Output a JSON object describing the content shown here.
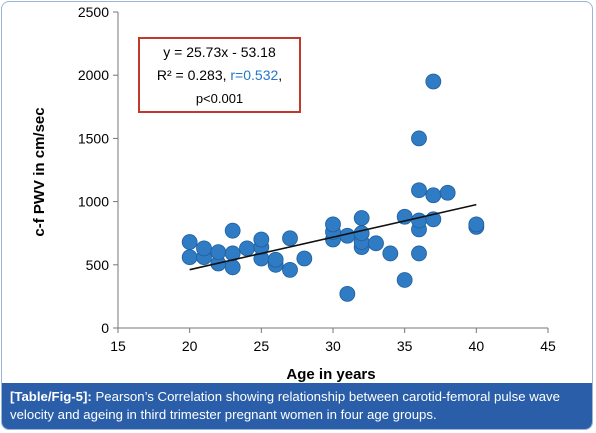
{
  "chart_data": {
    "type": "scatter",
    "xlabel": "Age in years",
    "ylabel": "c-f PWV in cm/sec",
    "xlim": [
      15,
      45
    ],
    "ylim": [
      0,
      2500
    ],
    "xticks": [
      15,
      20,
      25,
      30,
      35,
      40,
      45
    ],
    "yticks": [
      0,
      500,
      1000,
      1500,
      2000,
      2500
    ],
    "point_color": "#2f7bc4",
    "trendline": {
      "slope": 25.73,
      "intercept": -53.18,
      "x_range": [
        20,
        40
      ]
    },
    "annotation": {
      "line1": "y = 25.73x - 53.18",
      "line2_prefix": "R² = 0.283, ",
      "line2_r": "r=0.532",
      "line2_suffix": ",",
      "line3": "p<0.001"
    },
    "points": [
      {
        "x": 20,
        "y": 560
      },
      {
        "x": 20,
        "y": 680
      },
      {
        "x": 21,
        "y": 560
      },
      {
        "x": 21,
        "y": 630
      },
      {
        "x": 22,
        "y": 510
      },
      {
        "x": 22,
        "y": 600
      },
      {
        "x": 23,
        "y": 480
      },
      {
        "x": 23,
        "y": 590
      },
      {
        "x": 23,
        "y": 770
      },
      {
        "x": 24,
        "y": 630
      },
      {
        "x": 25,
        "y": 550
      },
      {
        "x": 25,
        "y": 640
      },
      {
        "x": 25,
        "y": 700
      },
      {
        "x": 26,
        "y": 500
      },
      {
        "x": 26,
        "y": 540
      },
      {
        "x": 27,
        "y": 460
      },
      {
        "x": 27,
        "y": 710
      },
      {
        "x": 28,
        "y": 550
      },
      {
        "x": 30,
        "y": 700
      },
      {
        "x": 30,
        "y": 760
      },
      {
        "x": 30,
        "y": 820
      },
      {
        "x": 31,
        "y": 270
      },
      {
        "x": 31,
        "y": 730
      },
      {
        "x": 32,
        "y": 640
      },
      {
        "x": 32,
        "y": 680
      },
      {
        "x": 32,
        "y": 750
      },
      {
        "x": 32,
        "y": 870
      },
      {
        "x": 33,
        "y": 670
      },
      {
        "x": 34,
        "y": 590
      },
      {
        "x": 35,
        "y": 380
      },
      {
        "x": 35,
        "y": 880
      },
      {
        "x": 36,
        "y": 590
      },
      {
        "x": 36,
        "y": 780
      },
      {
        "x": 36,
        "y": 850
      },
      {
        "x": 36,
        "y": 1090
      },
      {
        "x": 36,
        "y": 1500
      },
      {
        "x": 37,
        "y": 860
      },
      {
        "x": 37,
        "y": 1050
      },
      {
        "x": 37,
        "y": 1950
      },
      {
        "x": 38,
        "y": 1070
      },
      {
        "x": 40,
        "y": 800
      },
      {
        "x": 40,
        "y": 820
      }
    ]
  },
  "caption": {
    "lead": "[Table/Fig-5]:",
    "text": " Pearson’s Correlation showing relationship between carotid-femoral pulse wave velocity and ageing in third trimester pregnant women in four age groups."
  }
}
